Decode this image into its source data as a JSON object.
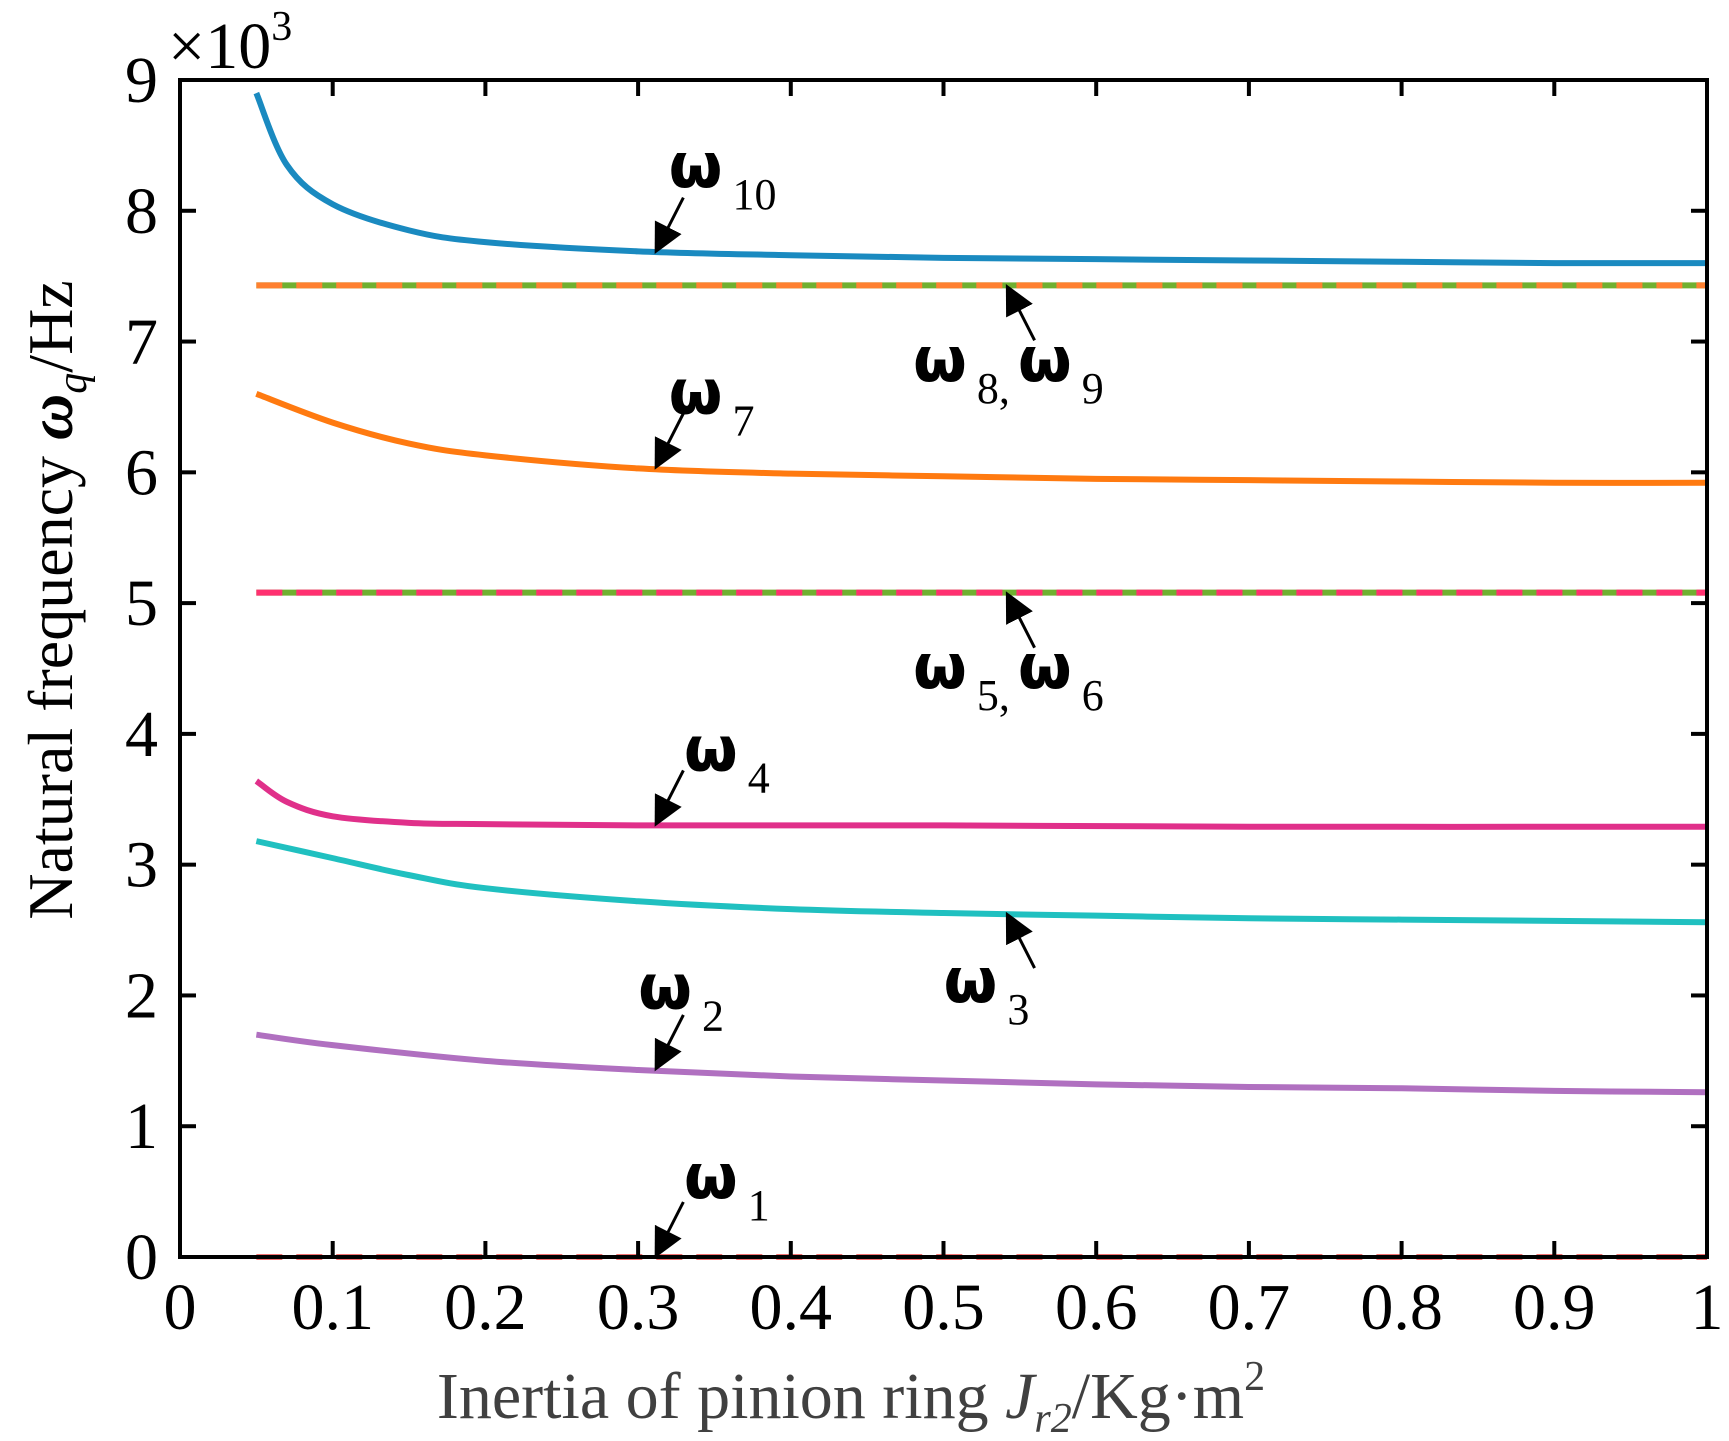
{
  "chart_data": {
    "type": "line",
    "multiplier": {
      "prefix": "×10",
      "exponent": "3"
    },
    "ylabel": {
      "text": "Natural frequency ",
      "symbol": "ω",
      "subscript": "q",
      "unit": "/Hz"
    },
    "xlabel": {
      "text": "Inertia of pinion ring ",
      "symbol": "J",
      "subscript": "r2",
      "unit": "/Kg·m",
      "superscript": "2"
    },
    "xlim": [
      0,
      1
    ],
    "ylim": [
      0,
      9
    ],
    "x_ticks": [
      {
        "value": 0,
        "label": "0"
      },
      {
        "value": 0.1,
        "label": "0.1"
      },
      {
        "value": 0.2,
        "label": "0.2"
      },
      {
        "value": 0.3,
        "label": "0.3"
      },
      {
        "value": 0.4,
        "label": "0.4"
      },
      {
        "value": 0.5,
        "label": "0.5"
      },
      {
        "value": 0.6,
        "label": "0.6"
      },
      {
        "value": 0.7,
        "label": "0.7"
      },
      {
        "value": 0.8,
        "label": "0.8"
      },
      {
        "value": 0.9,
        "label": "0.9"
      },
      {
        "value": 1,
        "label": "1"
      }
    ],
    "y_ticks": [
      {
        "value": 0,
        "label": "0"
      },
      {
        "value": 1,
        "label": "1"
      },
      {
        "value": 2,
        "label": "2"
      },
      {
        "value": 3,
        "label": "3"
      },
      {
        "value": 4,
        "label": "4"
      },
      {
        "value": 5,
        "label": "5"
      },
      {
        "value": 6,
        "label": "6"
      },
      {
        "value": 7,
        "label": "7"
      },
      {
        "value": 8,
        "label": "8"
      },
      {
        "value": 9,
        "label": "9"
      }
    ],
    "grid": false,
    "series": [
      {
        "name": "ω1",
        "color": "#f07070",
        "dashed": true,
        "x": [
          0.05,
          1.0
        ],
        "y": [
          0.0,
          0.0
        ]
      },
      {
        "name": "ω2",
        "color": "#b070c0",
        "dashed": false,
        "x": [
          0.05,
          0.1,
          0.2,
          0.3,
          0.4,
          0.5,
          0.6,
          0.7,
          0.8,
          0.9,
          1.0
        ],
        "y": [
          1.7,
          1.62,
          1.5,
          1.43,
          1.38,
          1.35,
          1.32,
          1.3,
          1.29,
          1.27,
          1.26
        ]
      },
      {
        "name": "ω3",
        "color": "#20c0c0",
        "dashed": false,
        "x": [
          0.05,
          0.1,
          0.15,
          0.2,
          0.3,
          0.4,
          0.5,
          0.6,
          0.7,
          0.8,
          0.9,
          1.0
        ],
        "y": [
          3.18,
          3.05,
          2.92,
          2.82,
          2.72,
          2.66,
          2.63,
          2.61,
          2.59,
          2.58,
          2.57,
          2.56
        ]
      },
      {
        "name": "ω4",
        "color": "#e0308a",
        "dashed": false,
        "x": [
          0.05,
          0.07,
          0.1,
          0.15,
          0.2,
          0.3,
          0.5,
          0.7,
          1.0
        ],
        "y": [
          3.64,
          3.48,
          3.37,
          3.32,
          3.31,
          3.3,
          3.3,
          3.29,
          3.29
        ]
      },
      {
        "name": "ω5",
        "color": "#70b030",
        "dashed": false,
        "x": [
          0.05,
          1.0
        ],
        "y": [
          5.08,
          5.08
        ]
      },
      {
        "name": "ω6",
        "color": "#ff3070",
        "dashed": true,
        "x": [
          0.05,
          1.0
        ],
        "y": [
          5.08,
          5.08
        ]
      },
      {
        "name": "ω7",
        "color": "#ff7a10",
        "dashed": false,
        "x": [
          0.05,
          0.1,
          0.15,
          0.2,
          0.3,
          0.4,
          0.5,
          0.6,
          0.7,
          0.8,
          0.9,
          1.0
        ],
        "y": [
          6.6,
          6.38,
          6.22,
          6.13,
          6.03,
          5.99,
          5.97,
          5.95,
          5.94,
          5.93,
          5.92,
          5.92
        ]
      },
      {
        "name": "ω8",
        "color": "#70b030",
        "dashed": false,
        "x": [
          0.05,
          1.0
        ],
        "y": [
          7.43,
          7.43
        ]
      },
      {
        "name": "ω9",
        "color": "#ff8030",
        "dashed": true,
        "x": [
          0.05,
          1.0
        ],
        "y": [
          7.43,
          7.43
        ]
      },
      {
        "name": "ω10",
        "color": "#1a8ac0",
        "dashed": false,
        "x": [
          0.05,
          0.07,
          0.1,
          0.15,
          0.2,
          0.3,
          0.4,
          0.5,
          0.6,
          0.7,
          0.8,
          0.9,
          1.0
        ],
        "y": [
          8.9,
          8.35,
          8.05,
          7.85,
          7.76,
          7.69,
          7.66,
          7.64,
          7.63,
          7.62,
          7.61,
          7.6,
          7.6
        ]
      }
    ],
    "annotations": [
      {
        "symbols": [
          "ω"
        ],
        "subs": [
          "10"
        ],
        "point": [
          0.31,
          7.68
        ],
        "label_at": [
          0.32,
          8.18
        ]
      },
      {
        "symbols": [
          "ω",
          "ω"
        ],
        "subs": [
          "8,",
          "9"
        ],
        "point": [
          0.54,
          7.43
        ],
        "label_at": [
          0.48,
          6.7
        ]
      },
      {
        "symbols": [
          "ω"
        ],
        "subs": [
          "7"
        ],
        "point": [
          0.31,
          6.03
        ],
        "label_at": [
          0.32,
          6.45
        ]
      },
      {
        "symbols": [
          "ω",
          "ω"
        ],
        "subs": [
          "5,",
          "6"
        ],
        "point": [
          0.54,
          5.08
        ],
        "label_at": [
          0.48,
          4.35
        ]
      },
      {
        "symbols": [
          "ω"
        ],
        "subs": [
          "4"
        ],
        "point": [
          0.31,
          3.3
        ],
        "label_at": [
          0.33,
          3.72
        ]
      },
      {
        "symbols": [
          "ω"
        ],
        "subs": [
          "3"
        ],
        "point": [
          0.54,
          2.63
        ],
        "label_at": [
          0.5,
          1.95
        ]
      },
      {
        "symbols": [
          "ω"
        ],
        "subs": [
          "2"
        ],
        "point": [
          0.31,
          1.43
        ],
        "label_at": [
          0.3,
          1.9
        ]
      },
      {
        "symbols": [
          "ω"
        ],
        "subs": [
          "1"
        ],
        "point": [
          0.31,
          0.0
        ],
        "label_at": [
          0.33,
          0.45
        ]
      }
    ]
  }
}
